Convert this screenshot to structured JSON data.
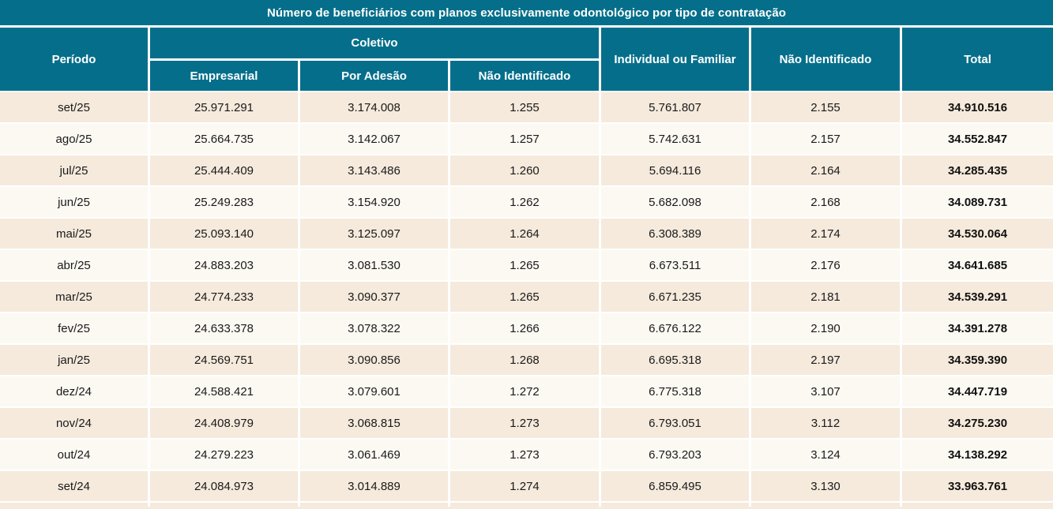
{
  "colors": {
    "header_teal": "#056F8B",
    "row_beige": "#F5EADC",
    "row_cream": "#FCF9F3",
    "separator_white": "#FFFFFF",
    "header_text": "#FFFFFF",
    "body_text": "#1A1A1A"
  },
  "columns": {
    "periodo": "Período",
    "coletivo": "Coletivo",
    "empresarial": "Empresarial",
    "por_adesao": "Por Adesão",
    "coletivo_nao_identificado": "Não Identificado",
    "individual_ou_familiar": "Individual ou Familiar",
    "nao_identificado": "Não Identificado",
    "total": "Total"
  },
  "chart_data": {
    "type": "table",
    "title": "Número de beneficiários com planos exclusivamente odontológico por tipo de contratação",
    "column_groups": [
      {
        "label": "Coletivo",
        "span": [
          "Empresarial",
          "Por Adesão",
          "Não Identificado"
        ]
      }
    ],
    "columns": [
      "Período",
      "Coletivo - Empresarial",
      "Coletivo - Por Adesão",
      "Coletivo - Não Identificado",
      "Individual ou Familiar",
      "Não Identificado",
      "Total"
    ],
    "rows": [
      [
        "set/25",
        "25.971.291",
        "3.174.008",
        "1.255",
        "5.761.807",
        "2.155",
        "34.910.516"
      ],
      [
        "ago/25",
        "25.664.735",
        "3.142.067",
        "1.257",
        "5.742.631",
        "2.157",
        "34.552.847"
      ],
      [
        "jul/25",
        "25.444.409",
        "3.143.486",
        "1.260",
        "5.694.116",
        "2.164",
        "34.285.435"
      ],
      [
        "jun/25",
        "25.249.283",
        "3.154.920",
        "1.262",
        "5.682.098",
        "2.168",
        "34.089.731"
      ],
      [
        "mai/25",
        "25.093.140",
        "3.125.097",
        "1.264",
        "6.308.389",
        "2.174",
        "34.530.064"
      ],
      [
        "abr/25",
        "24.883.203",
        "3.081.530",
        "1.265",
        "6.673.511",
        "2.176",
        "34.641.685"
      ],
      [
        "mar/25",
        "24.774.233",
        "3.090.377",
        "1.265",
        "6.671.235",
        "2.181",
        "34.539.291"
      ],
      [
        "fev/25",
        "24.633.378",
        "3.078.322",
        "1.266",
        "6.676.122",
        "2.190",
        "34.391.278"
      ],
      [
        "jan/25",
        "24.569.751",
        "3.090.856",
        "1.268",
        "6.695.318",
        "2.197",
        "34.359.390"
      ],
      [
        "dez/24",
        "24.588.421",
        "3.079.601",
        "1.272",
        "6.775.318",
        "3.107",
        "34.447.719"
      ],
      [
        "nov/24",
        "24.408.979",
        "3.068.815",
        "1.273",
        "6.793.051",
        "3.112",
        "34.275.230"
      ],
      [
        "out/24",
        "24.279.223",
        "3.061.469",
        "1.273",
        "6.793.203",
        "3.124",
        "34.138.292"
      ],
      [
        "set/24",
        "24.084.973",
        "3.014.889",
        "1.274",
        "6.859.495",
        "3.130",
        "33.963.761"
      ]
    ]
  }
}
